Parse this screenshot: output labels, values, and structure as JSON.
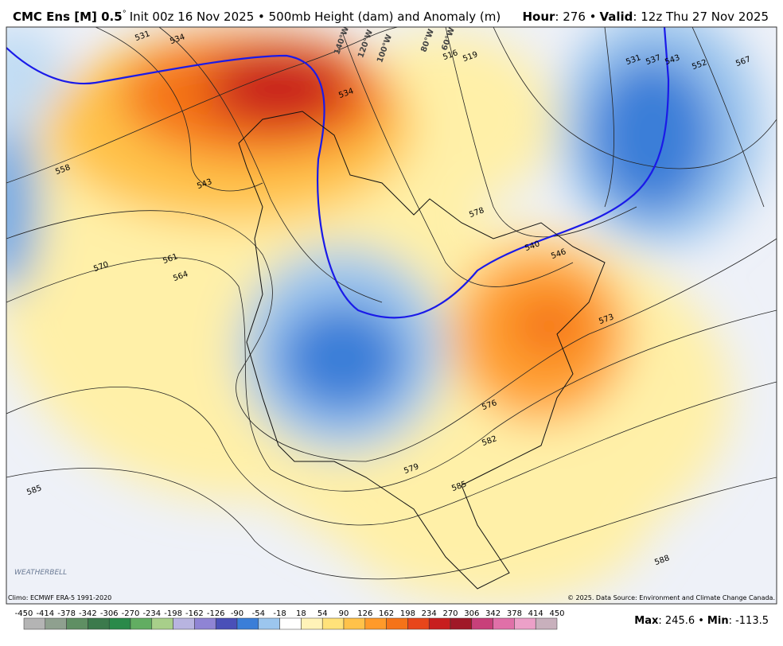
{
  "header": {
    "model": "CMC Ens [M] 0.5",
    "degree": "°",
    "info": "Init 00z 16 Nov 2025 • 500mb Height (dam) and Anomaly (m)",
    "hour_label": "Hour",
    "hour": ": 276 •",
    "valid_label": "Valid",
    "valid": ": 12z Thu 27 Nov 2025"
  },
  "map": {
    "contour_labels": [
      "531",
      "534",
      "558",
      "543",
      "570",
      "561",
      "564",
      "585",
      "579",
      "582",
      "585",
      "588",
      "573",
      "576",
      "546",
      "540",
      "578",
      "516",
      "519",
      "531",
      "537",
      "543",
      "552",
      "567",
      "534"
    ],
    "longitude_labels": [
      "140°W",
      "120°W",
      "100°W",
      "80°W",
      "60°W"
    ],
    "logo": "WEATHERBELL"
  },
  "footer": {
    "climo": "Climo: ECMWF ERA-5 1991-2020",
    "copyright": "© 2025. Data Source: Environment and Climate Change Canada.",
    "max_label": "Max",
    "max": ": 245.6 •",
    "min_label": "Min",
    "min": ": -113.5"
  },
  "colorbar": {
    "ticks": [
      -450,
      -414,
      -378,
      -342,
      -306,
      -270,
      -234,
      -198,
      -162,
      -126,
      -90,
      -54,
      -18,
      18,
      54,
      90,
      126,
      162,
      198,
      234,
      270,
      306,
      342,
      378,
      414,
      450
    ],
    "colors": [
      "#b4b4b4",
      "#8fa08f",
      "#5f8f63",
      "#3c7a4c",
      "#2a8a4a",
      "#62ad62",
      "#a8cf8a",
      "#b8b4e0",
      "#8f84d4",
      "#4a50b8",
      "#3a7ed8",
      "#9cc6ee",
      "#ffffff",
      "#fff3b8",
      "#ffe27a",
      "#ffc24a",
      "#ff9a2a",
      "#f57318",
      "#e8461a",
      "#c81e1e",
      "#a01828",
      "#c8407a",
      "#e070a8",
      "#eca0c8",
      "#c8b0bc"
    ]
  }
}
